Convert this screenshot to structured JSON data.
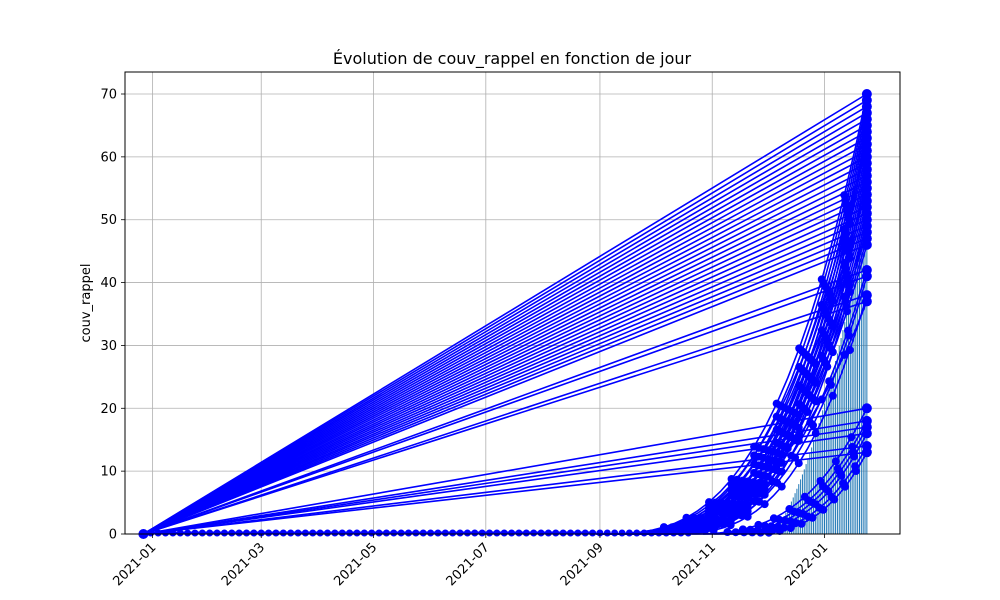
{
  "chart_data": {
    "type": "line",
    "title": "Évolution de couv_rappel en fonction de jour",
    "xlabel": "",
    "ylabel": "couv_rappel",
    "xlim": [
      "2020-12-17",
      "2022-02-11"
    ],
    "ylim": [
      0,
      73.5
    ],
    "x_ticks": [
      "2021-01",
      "2021-03",
      "2021-05",
      "2021-07",
      "2021-09",
      "2021-11",
      "2022-01"
    ],
    "y_ticks": [
      0,
      10,
      20,
      30,
      40,
      50,
      60,
      70
    ],
    "grid": true,
    "colors": {
      "line": "#0000ff",
      "stem": "#1f77b4",
      "grid": "#b0b0b0"
    },
    "origin": {
      "date": "2020-12-27",
      "value": 0
    },
    "series_end_date": "2022-01-24",
    "series_final_values": [
      70,
      69,
      68,
      67,
      66,
      65,
      64,
      63,
      62,
      61,
      60,
      59,
      58,
      57,
      56,
      55,
      54,
      53,
      52,
      51,
      50,
      49,
      48,
      47,
      46,
      42,
      41,
      38,
      37,
      20,
      18,
      17,
      16,
      14,
      13
    ],
    "plateau_until": "2021-08-30"
  }
}
